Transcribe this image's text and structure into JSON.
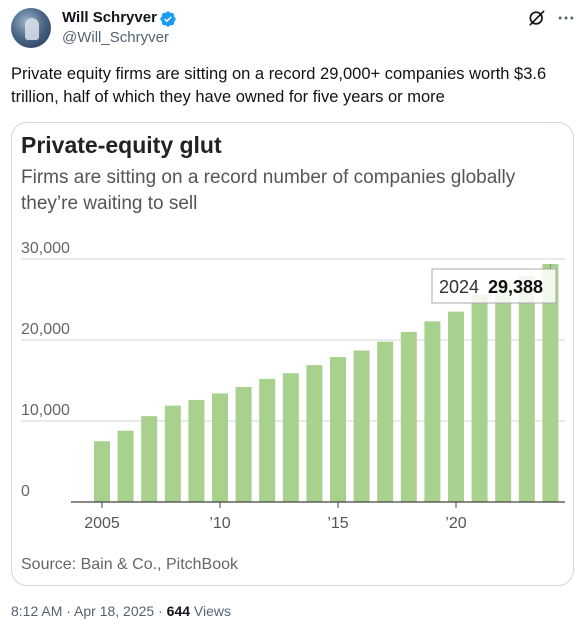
{
  "user": {
    "name": "Will Schryver",
    "handle": "@Will_Schryver"
  },
  "tweet": {
    "text": "Private equity firms are sitting on a record 29,000+ companies worth $3.6 trillion, half of which they have owned for five years or more",
    "time": "8:12 AM · Apr 18, 2025 · ",
    "views_count": "644",
    "views_label": " Views"
  },
  "card": {
    "title": "Private-equity glut",
    "subtitle": "Firms are sitting on a record number of companies globally they’re waiting to sell",
    "source": "Source: Bain & Co., PitchBook"
  },
  "colors": {
    "bar": "#a9d18e",
    "grid": "#d6d6d6",
    "handle": "#536471",
    "verified": "#1d9bf0"
  },
  "icons": [
    "verified-badge-icon",
    "grok-icon",
    "more-icon"
  ],
  "chart_data": {
    "type": "bar",
    "categories": [
      "2005",
      "2006",
      "2007",
      "2008",
      "2009",
      "2010",
      "2011",
      "2012",
      "2013",
      "2014",
      "2015",
      "2016",
      "2017",
      "2018",
      "2019",
      "2020",
      "2021",
      "2022",
      "2023",
      "2024"
    ],
    "values": [
      7500,
      8800,
      10600,
      11900,
      12600,
      13400,
      14200,
      15200,
      15900,
      16900,
      17900,
      18700,
      19800,
      21000,
      22300,
      23500,
      25600,
      27300,
      27900,
      29388
    ],
    "x_ticks": [
      "2005",
      "’10",
      "’15",
      "’20"
    ],
    "x_tick_years": [
      2005,
      2010,
      2015,
      2020
    ],
    "y_ticks": [
      "0",
      "10,000",
      "20,000",
      "30,000"
    ],
    "y_tick_values": [
      0,
      10000,
      20000,
      30000
    ],
    "ylim": [
      0,
      30000
    ],
    "annotation": {
      "year": "2024",
      "value": "29,388"
    }
  }
}
